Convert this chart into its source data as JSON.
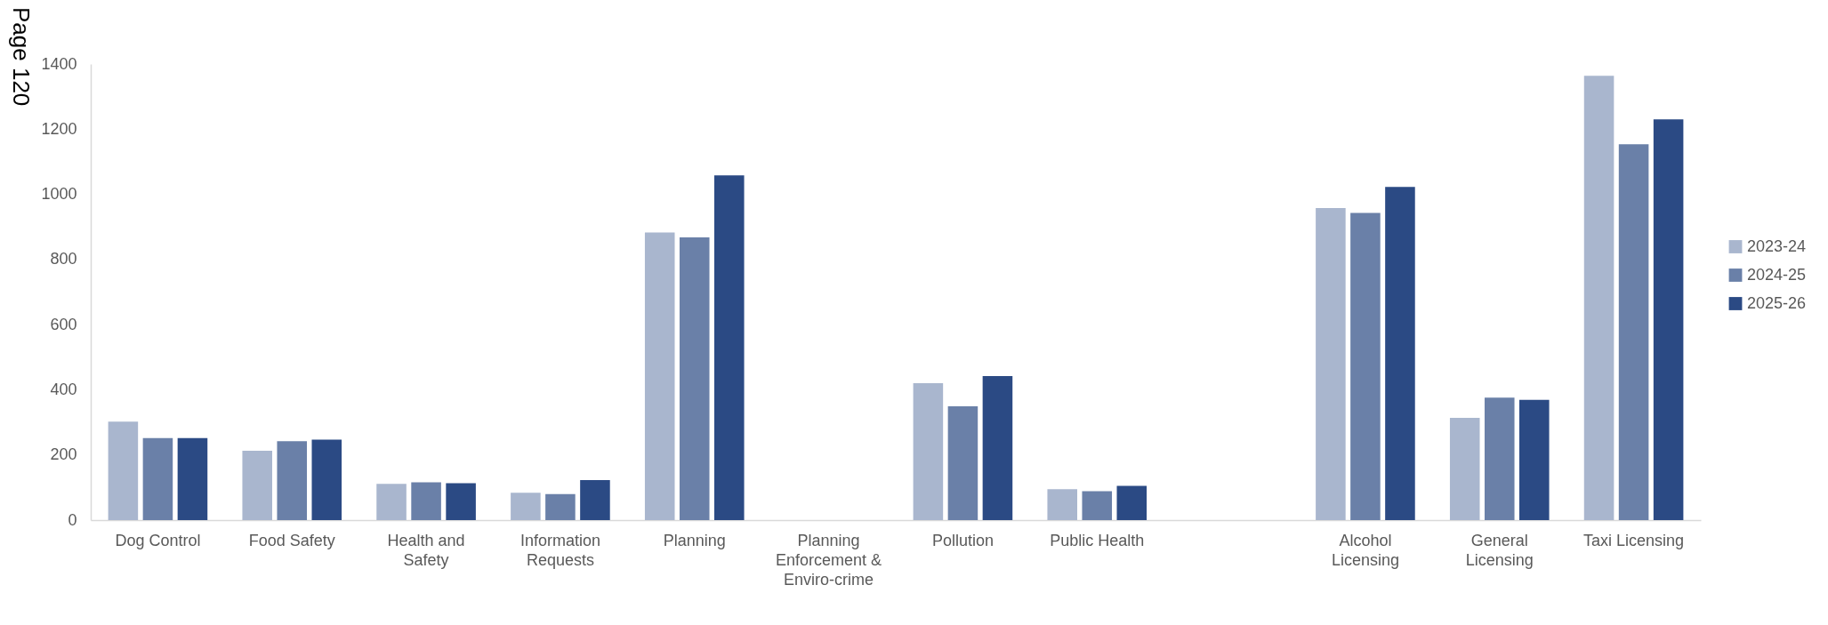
{
  "chart_data": {
    "type": "bar",
    "categories": [
      "Dog Control",
      "Food Safety",
      "Health and Safety",
      "Information Requests",
      "Planning",
      "Planning Enforcement & Enviro-crime",
      "Pollution",
      "Public Health",
      null,
      "Alcohol Licensing",
      "General Licensing",
      "Taxi Licensing"
    ],
    "series": [
      {
        "name": "2023-24",
        "color": "#a9b6ce",
        "values": [
          302,
          213,
          111,
          84,
          883,
          null,
          420,
          95,
          null,
          958,
          314,
          1364
        ]
      },
      {
        "name": "2024-25",
        "color": "#6a80a8",
        "values": [
          252,
          242,
          116,
          80,
          868,
          null,
          349,
          89,
          null,
          943,
          376,
          1154
        ]
      },
      {
        "name": "2025-26",
        "color": "#2b4a84",
        "values": [
          252,
          247,
          113,
          123,
          1058,
          null,
          442,
          105,
          null,
          1023,
          369,
          1230
        ]
      }
    ],
    "ylim": [
      0,
      1400
    ],
    "yticks": [
      0,
      200,
      400,
      600,
      800,
      1000,
      1200,
      1400
    ],
    "legend": "right",
    "grid": false,
    "annotations": [
      "Page 120"
    ]
  }
}
